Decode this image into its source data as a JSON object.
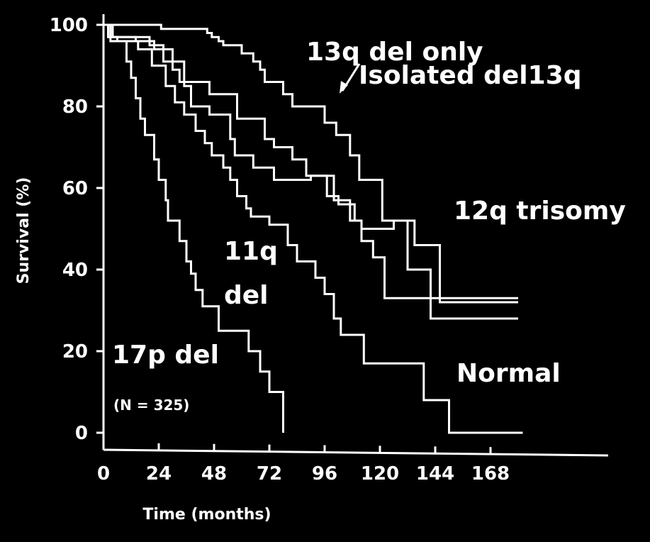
{
  "colors": {
    "background": "#000000",
    "foreground": "#ffffff"
  },
  "chart_data": {
    "type": "line",
    "title": "",
    "xlabel": "Time (months)",
    "ylabel": "Survival (%)",
    "xlim": [
      0,
      168
    ],
    "ylim": [
      0,
      100
    ],
    "x_ticks": [
      0,
      24,
      48,
      72,
      96,
      120,
      144,
      168
    ],
    "y_ticks": [
      0,
      20,
      40,
      60,
      80,
      100
    ],
    "grid": false,
    "line_style": "step",
    "annotations": {
      "sample_size": "(N = 325)",
      "isolated_del13q": "Isolated del13q",
      "del13q_arrow": "arrow from Isolated del13q label to 13q del only curve"
    },
    "series": [
      {
        "name": "17p del",
        "points": [
          [
            0,
            100
          ],
          [
            2,
            100
          ],
          [
            2,
            97
          ],
          [
            6,
            97
          ],
          [
            6,
            96
          ],
          [
            10,
            96
          ],
          [
            10,
            91
          ],
          [
            12,
            91
          ],
          [
            12,
            87
          ],
          [
            14,
            87
          ],
          [
            14,
            82
          ],
          [
            16,
            82
          ],
          [
            16,
            77
          ],
          [
            18,
            77
          ],
          [
            18,
            73
          ],
          [
            22,
            73
          ],
          [
            22,
            67
          ],
          [
            24,
            67
          ],
          [
            24,
            62
          ],
          [
            27,
            62
          ],
          [
            27,
            57
          ],
          [
            28,
            57
          ],
          [
            28,
            52
          ],
          [
            33,
            52
          ],
          [
            33,
            47
          ],
          [
            36,
            47
          ],
          [
            36,
            42
          ],
          [
            38,
            42
          ],
          [
            38,
            39
          ],
          [
            40,
            39
          ],
          [
            40,
            35
          ],
          [
            43,
            35
          ],
          [
            43,
            31
          ],
          [
            50,
            31
          ],
          [
            50,
            25
          ],
          [
            63,
            25
          ],
          [
            63,
            20
          ],
          [
            68,
            20
          ],
          [
            68,
            15
          ],
          [
            72,
            15
          ],
          [
            72,
            10
          ],
          [
            78,
            10
          ],
          [
            78,
            0
          ]
        ]
      },
      {
        "name": "11q del",
        "points": [
          [
            0,
            100
          ],
          [
            3,
            100
          ],
          [
            3,
            96
          ],
          [
            15,
            96
          ],
          [
            15,
            94
          ],
          [
            21,
            94
          ],
          [
            21,
            90
          ],
          [
            27,
            90
          ],
          [
            27,
            85
          ],
          [
            31,
            85
          ],
          [
            31,
            81
          ],
          [
            35,
            81
          ],
          [
            35,
            78
          ],
          [
            40,
            78
          ],
          [
            40,
            74
          ],
          [
            44,
            74
          ],
          [
            44,
            71
          ],
          [
            47,
            71
          ],
          [
            47,
            68
          ],
          [
            52,
            68
          ],
          [
            52,
            65
          ],
          [
            55,
            65
          ],
          [
            55,
            62
          ],
          [
            58,
            62
          ],
          [
            58,
            58
          ],
          [
            62,
            58
          ],
          [
            62,
            55
          ],
          [
            64,
            55
          ],
          [
            64,
            53
          ],
          [
            72,
            53
          ],
          [
            72,
            51
          ],
          [
            80,
            51
          ],
          [
            80,
            46
          ],
          [
            84,
            46
          ],
          [
            84,
            42
          ],
          [
            92,
            42
          ],
          [
            92,
            38
          ],
          [
            96,
            38
          ],
          [
            96,
            34
          ],
          [
            100,
            34
          ],
          [
            100,
            28
          ],
          [
            103,
            28
          ],
          [
            103,
            24
          ],
          [
            113,
            24
          ],
          [
            113,
            17
          ],
          [
            126,
            17
          ],
          [
            126,
            17
          ],
          [
            139,
            17
          ],
          [
            139,
            8
          ],
          [
            150,
            8
          ],
          [
            150,
            0
          ],
          [
            182,
            0
          ]
        ]
      },
      {
        "name": "Normal",
        "points": [
          [
            0,
            100
          ],
          [
            3,
            100
          ],
          [
            3,
            97
          ],
          [
            20,
            97
          ],
          [
            20,
            95
          ],
          [
            26,
            95
          ],
          [
            26,
            91
          ],
          [
            35,
            91
          ],
          [
            35,
            85
          ],
          [
            38,
            85
          ],
          [
            38,
            80
          ],
          [
            46,
            80
          ],
          [
            46,
            78
          ],
          [
            55,
            78
          ],
          [
            55,
            72
          ],
          [
            57,
            72
          ],
          [
            57,
            68
          ],
          [
            65,
            68
          ],
          [
            65,
            65
          ],
          [
            74,
            65
          ],
          [
            74,
            62
          ],
          [
            90,
            62
          ],
          [
            90,
            63
          ],
          [
            97,
            63
          ],
          [
            97,
            58
          ],
          [
            102,
            58
          ],
          [
            102,
            56
          ],
          [
            109,
            56
          ],
          [
            109,
            52
          ],
          [
            112,
            52
          ],
          [
            112,
            47
          ],
          [
            117,
            47
          ],
          [
            117,
            43
          ],
          [
            122,
            43
          ],
          [
            122,
            33
          ],
          [
            138,
            33
          ],
          [
            138,
            33
          ],
          [
            180,
            33
          ]
        ]
      },
      {
        "name": "12q trisomy",
        "points": [
          [
            0,
            100
          ],
          [
            4,
            100
          ],
          [
            4,
            97
          ],
          [
            14,
            97
          ],
          [
            14,
            96
          ],
          [
            22,
            96
          ],
          [
            22,
            94
          ],
          [
            30,
            94
          ],
          [
            30,
            89
          ],
          [
            33,
            89
          ],
          [
            33,
            86
          ],
          [
            40,
            86
          ],
          [
            40,
            86
          ],
          [
            46,
            86
          ],
          [
            46,
            83
          ],
          [
            50,
            83
          ],
          [
            50,
            83
          ],
          [
            58,
            83
          ],
          [
            58,
            77
          ],
          [
            70,
            77
          ],
          [
            70,
            72
          ],
          [
            74,
            72
          ],
          [
            74,
            70
          ],
          [
            82,
            70
          ],
          [
            82,
            67
          ],
          [
            88,
            67
          ],
          [
            88,
            63
          ],
          [
            100,
            63
          ],
          [
            100,
            57
          ],
          [
            107,
            57
          ],
          [
            107,
            52
          ],
          [
            112,
            52
          ],
          [
            112,
            50
          ],
          [
            126,
            50
          ],
          [
            126,
            52
          ],
          [
            132,
            52
          ],
          [
            132,
            40
          ],
          [
            142,
            40
          ],
          [
            142,
            28
          ],
          [
            180,
            28
          ]
        ]
      },
      {
        "name": "13q del only",
        "points": [
          [
            0,
            100
          ],
          [
            25,
            100
          ],
          [
            25,
            99
          ],
          [
            45,
            99
          ],
          [
            45,
            98
          ],
          [
            47,
            98
          ],
          [
            47,
            97
          ],
          [
            50,
            97
          ],
          [
            50,
            96
          ],
          [
            52,
            96
          ],
          [
            52,
            95
          ],
          [
            60,
            95
          ],
          [
            60,
            93
          ],
          [
            65,
            93
          ],
          [
            65,
            91
          ],
          [
            68,
            91
          ],
          [
            68,
            89
          ],
          [
            70,
            89
          ],
          [
            70,
            86
          ],
          [
            78,
            86
          ],
          [
            78,
            83
          ],
          [
            82,
            83
          ],
          [
            82,
            80
          ],
          [
            92,
            80
          ],
          [
            92,
            80
          ],
          [
            96,
            80
          ],
          [
            96,
            76
          ],
          [
            101,
            76
          ],
          [
            101,
            73
          ],
          [
            107,
            73
          ],
          [
            107,
            68
          ],
          [
            111,
            68
          ],
          [
            111,
            62
          ],
          [
            121,
            62
          ],
          [
            121,
            52
          ],
          [
            135,
            52
          ],
          [
            135,
            46
          ],
          [
            146,
            46
          ],
          [
            146,
            32
          ],
          [
            180,
            32
          ]
        ]
      }
    ]
  }
}
